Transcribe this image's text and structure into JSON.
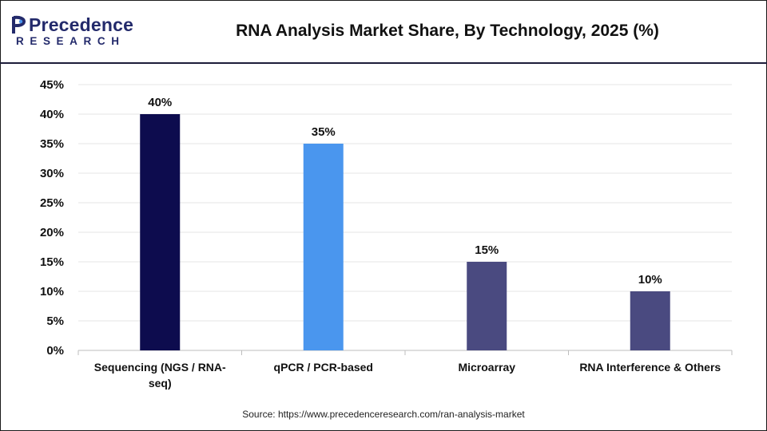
{
  "header": {
    "logo_main": "Precedence",
    "logo_sub": "RESEARCH",
    "title": "RNA Analysis Market Share, By Technology, 2025 (%)"
  },
  "colors": {
    "logo": "#232a6b",
    "header_rule": "#1c1c3a",
    "gridline": "#e6e6e6",
    "axis": "#bdbdbd"
  },
  "chart_data": {
    "type": "bar",
    "title": "RNA Analysis Market Share, By Technology, 2025 (%)",
    "xlabel": "",
    "ylabel": "",
    "ylim": [
      0,
      45
    ],
    "yticks": [
      "0%",
      "5%",
      "10%",
      "15%",
      "20%",
      "25%",
      "30%",
      "35%",
      "40%",
      "45%"
    ],
    "grid": true,
    "categories": [
      [
        "Sequencing (NGS / RNA-",
        "seq)"
      ],
      [
        "qPCR / PCR-based"
      ],
      [
        "Microarray"
      ],
      [
        "RNA Interference & Others"
      ]
    ],
    "values": [
      40,
      35,
      15,
      10
    ],
    "data_labels": [
      "40%",
      "35%",
      "15%",
      "10%"
    ],
    "bar_colors": [
      "#0d0c4e",
      "#4a96ee",
      "#4a4a80",
      "#4a4a80"
    ]
  },
  "footer": {
    "source": "Source: https://www.precedenceresearch.com/ran-analysis-market"
  }
}
